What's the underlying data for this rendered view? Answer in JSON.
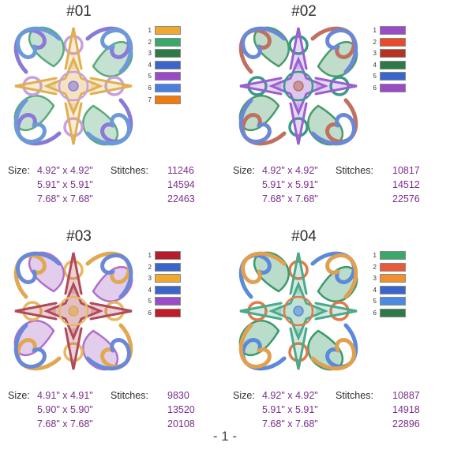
{
  "designs": [
    {
      "title": "#01",
      "colors": [
        "#f0a830",
        "#3aa86a",
        "#2d7a48",
        "#3a66cc",
        "#9a4cc8",
        "#4a7fe0",
        "#f07a10"
      ],
      "art": {
        "primary": "#8a7ad8",
        "secondary": "#6a9ad8",
        "leaf": "#5aaa7a",
        "center": "#e0b050",
        "accent": "#c8a0e0"
      },
      "sizes": [
        "4.92\" x 4.92\"",
        "5.91\" x 5.91\"",
        "7.68\" x 7.68\""
      ],
      "stitches": [
        "11246",
        "14594",
        "22463"
      ]
    },
    {
      "title": "#02",
      "colors": [
        "#9a4cc8",
        "#e84a2a",
        "#b83222",
        "#2d7a48",
        "#3a66cc",
        "#9a4cc8"
      ],
      "art": {
        "primary": "#c07060",
        "secondary": "#6a88d8",
        "leaf": "#4a9a6a",
        "center": "#9a60d0",
        "accent": "#3a9a8a"
      },
      "sizes": [
        "4.92\" x 4.92\"",
        "5.91\" x 5.91\"",
        "7.68\" x 7.68\""
      ],
      "stitches": [
        "10817",
        "14512",
        "22576"
      ]
    },
    {
      "title": "#03",
      "colors": [
        "#b81c2a",
        "#3a66cc",
        "#f0a830",
        "#3a66cc",
        "#9a4cc8",
        "#c01c2a"
      ],
      "art": {
        "primary": "#e0a850",
        "secondary": "#6a88d8",
        "leaf": "#b070c8",
        "center": "#b04a5a",
        "accent": "#e8b860"
      },
      "sizes": [
        "4.91\" x 4.91\"",
        "5.90\" x 5.90\"",
        "7.68\" x 7.68\""
      ],
      "stitches": [
        "9830",
        "13520",
        "20108"
      ]
    },
    {
      "title": "#04",
      "colors": [
        "#3aa86a",
        "#e85a3a",
        "#f09030",
        "#3a66cc",
        "#4a8ae0",
        "#2d7a48"
      ],
      "art": {
        "primary": "#5a8ad8",
        "secondary": "#e0a050",
        "leaf": "#3a9a6a",
        "center": "#4aaa8a",
        "accent": "#e07a4a"
      },
      "sizes": [
        "4.92\" x 4.92\"",
        "5.91\" x 5.91\"",
        "7.68\" x 7.68\""
      ],
      "stitches": [
        "10887",
        "14918",
        "22896"
      ]
    }
  ],
  "labels": {
    "size": "Size:",
    "stitches": "Stitches:"
  },
  "page_number": "- 1 -"
}
